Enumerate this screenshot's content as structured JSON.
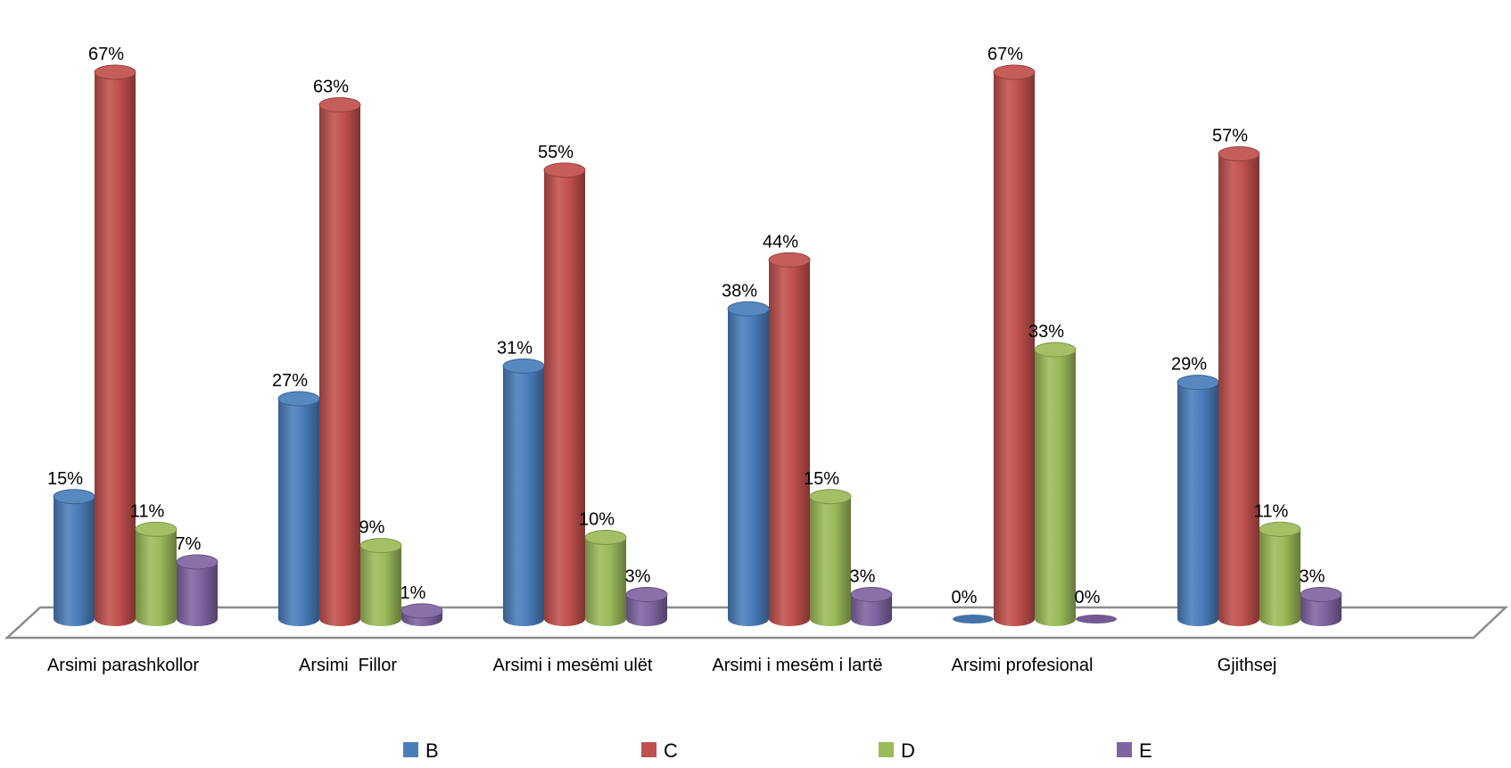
{
  "chart_data": {
    "type": "bar",
    "style": "3d-cylinder",
    "categories": [
      "Arsimi parashkollor",
      "Arsimi  Fillor",
      "Arsimi i mesëmi ulët",
      "Arsimi i mesëm i lartë",
      "Arsimi profesional",
      "Gjithsej"
    ],
    "series": [
      {
        "name": "B",
        "color": "#4a7ebb",
        "values": [
          15,
          27,
          31,
          38,
          0,
          29
        ],
        "labels": [
          "15%",
          "27%",
          "31%",
          "38%",
          "0%",
          "29%"
        ]
      },
      {
        "name": "C",
        "color": "#c0504d",
        "values": [
          67,
          63,
          55,
          44,
          67,
          57
        ],
        "labels": [
          "67%",
          "63%",
          "55%",
          "44%",
          "67%",
          "57%"
        ]
      },
      {
        "name": "D",
        "color": "#9bbb59",
        "values": [
          11,
          9,
          10,
          15,
          33,
          11
        ],
        "labels": [
          "11%",
          "9%",
          "10%",
          "15%",
          "33%",
          "11%"
        ]
      },
      {
        "name": "E",
        "color": "#8064a2",
        "values": [
          7,
          1,
          3,
          3,
          0,
          3
        ],
        "labels": [
          "7%",
          "1%",
          "3%",
          "3%",
          "0%",
          "3%"
        ]
      }
    ],
    "ylim": [
      0,
      70
    ],
    "legend_position": "bottom",
    "grid": false
  }
}
